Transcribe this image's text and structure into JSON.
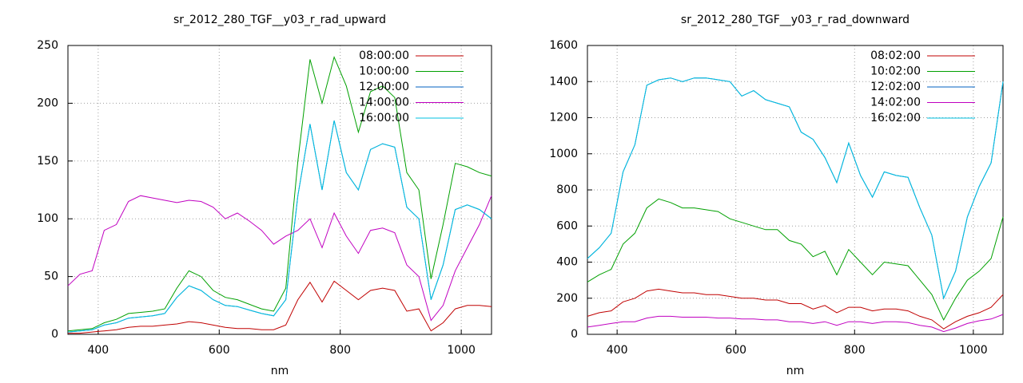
{
  "chart_data": [
    {
      "type": "line",
      "title": "sr_2012_280_TGF__y03_r_rad_upward",
      "x_label": "nm",
      "x": [
        350,
        370,
        390,
        410,
        430,
        450,
        470,
        490,
        510,
        530,
        550,
        570,
        590,
        610,
        630,
        650,
        670,
        690,
        710,
        730,
        750,
        770,
        790,
        810,
        830,
        850,
        870,
        890,
        910,
        930,
        950,
        970,
        990,
        1010,
        1030,
        1050
      ],
      "series": [
        {
          "name": "08:00:00",
          "color": "#c00000",
          "values": [
            1,
            1,
            2,
            3,
            4,
            6,
            7,
            7,
            8,
            9,
            11,
            10,
            8,
            6,
            5,
            5,
            4,
            4,
            8,
            30,
            45,
            28,
            46,
            38,
            30,
            38,
            40,
            38,
            20,
            22,
            3,
            10,
            22,
            25,
            25,
            24
          ]
        },
        {
          "name": "10:00:00",
          "color": "#00a000",
          "values": [
            3,
            4,
            5,
            10,
            13,
            18,
            19,
            20,
            22,
            40,
            55,
            50,
            38,
            32,
            30,
            26,
            22,
            20,
            40,
            150,
            238,
            200,
            240,
            215,
            175,
            210,
            215,
            205,
            140,
            125,
            48,
            95,
            148,
            145,
            140,
            137
          ]
        },
        {
          "name": "12:00:00",
          "color": "#0060c0",
          "values": [
            2,
            3,
            4,
            8,
            10,
            14,
            15,
            16,
            18,
            32,
            42,
            38,
            30,
            25,
            24,
            21,
            18,
            16,
            30,
            120,
            182,
            125,
            185,
            140,
            125,
            160,
            165,
            162,
            110,
            100,
            30,
            60,
            108,
            112,
            108,
            100
          ]
        },
        {
          "name": "14:00:00",
          "color": "#c000c0",
          "values": [
            42,
            52,
            55,
            90,
            95,
            115,
            120,
            118,
            116,
            114,
            116,
            115,
            110,
            100,
            105,
            98,
            90,
            78,
            85,
            90,
            100,
            75,
            105,
            85,
            70,
            90,
            92,
            88,
            60,
            50,
            12,
            25,
            55,
            75,
            95,
            120
          ]
        },
        {
          "name": "16:00:00",
          "color": "#00c0e0",
          "values": [
            2,
            3,
            4,
            8,
            10,
            14,
            15,
            16,
            18,
            32,
            42,
            38,
            30,
            25,
            24,
            21,
            18,
            16,
            30,
            120,
            182,
            125,
            185,
            140,
            125,
            160,
            165,
            162,
            110,
            100,
            30,
            60,
            108,
            112,
            108,
            100
          ]
        }
      ],
      "xlim": [
        350,
        1050
      ],
      "xticks": [
        400,
        600,
        800,
        1000
      ],
      "ylim": [
        0,
        250
      ],
      "yticks": [
        0,
        50,
        100,
        150,
        200,
        250
      ],
      "grid": true,
      "legend": "top-right"
    },
    {
      "type": "line",
      "title": "sr_2012_280_TGF__y03_r_rad_downward",
      "x_label": "nm",
      "x": [
        350,
        370,
        390,
        410,
        430,
        450,
        470,
        490,
        510,
        530,
        550,
        570,
        590,
        610,
        630,
        650,
        670,
        690,
        710,
        730,
        750,
        770,
        790,
        810,
        830,
        850,
        870,
        890,
        910,
        930,
        950,
        970,
        990,
        1010,
        1030,
        1050
      ],
      "series": [
        {
          "name": "08:02:00",
          "color": "#c00000",
          "values": [
            100,
            120,
            130,
            180,
            200,
            240,
            250,
            240,
            230,
            230,
            220,
            220,
            210,
            200,
            200,
            190,
            190,
            170,
            170,
            140,
            160,
            120,
            150,
            150,
            130,
            140,
            140,
            130,
            100,
            80,
            30,
            70,
            100,
            120,
            150,
            220
          ]
        },
        {
          "name": "10:02:00",
          "color": "#00a000",
          "values": [
            290,
            330,
            360,
            500,
            560,
            700,
            750,
            730,
            700,
            700,
            690,
            680,
            640,
            620,
            600,
            580,
            580,
            520,
            500,
            430,
            460,
            330,
            470,
            400,
            330,
            400,
            390,
            380,
            300,
            220,
            80,
            200,
            300,
            350,
            420,
            650
          ]
        },
        {
          "name": "12:02:00",
          "color": "#0060c0",
          "values": [
            420,
            480,
            560,
            900,
            1050,
            1380,
            1410,
            1420,
            1400,
            1420,
            1420,
            1410,
            1400,
            1320,
            1350,
            1300,
            1280,
            1260,
            1120,
            1080,
            980,
            840,
            1060,
            880,
            760,
            900,
            880,
            870,
            700,
            550,
            200,
            350,
            650,
            820,
            950,
            1400
          ]
        },
        {
          "name": "14:02:00",
          "color": "#c000c0",
          "values": [
            40,
            50,
            60,
            70,
            70,
            90,
            100,
            100,
            95,
            95,
            95,
            90,
            90,
            85,
            85,
            80,
            80,
            70,
            70,
            60,
            70,
            50,
            70,
            70,
            60,
            70,
            70,
            65,
            50,
            40,
            15,
            35,
            60,
            75,
            85,
            110
          ]
        },
        {
          "name": "16:02:00",
          "color": "#00c0e0",
          "values": [
            420,
            480,
            560,
            900,
            1050,
            1380,
            1410,
            1420,
            1400,
            1420,
            1420,
            1410,
            1400,
            1320,
            1350,
            1300,
            1280,
            1260,
            1120,
            1080,
            980,
            840,
            1060,
            880,
            760,
            900,
            880,
            870,
            700,
            550,
            200,
            350,
            650,
            820,
            950,
            1400
          ]
        }
      ],
      "xlim": [
        350,
        1050
      ],
      "xticks": [
        400,
        600,
        800,
        1000
      ],
      "ylim": [
        0,
        1600
      ],
      "yticks": [
        0,
        200,
        400,
        600,
        800,
        1000,
        1200,
        1400,
        1600
      ],
      "grid": true,
      "legend": "top-right"
    }
  ]
}
